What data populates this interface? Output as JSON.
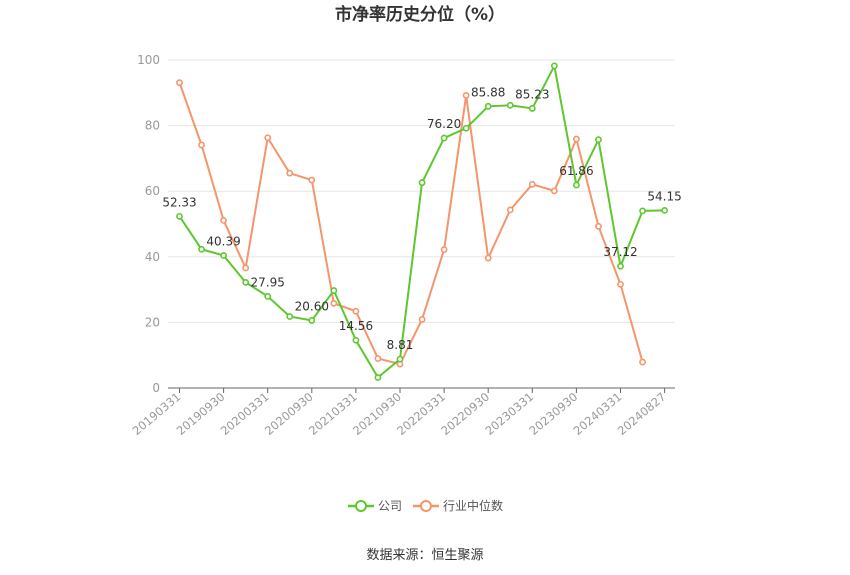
{
  "chart_data": {
    "type": "line",
    "title": "市净率历史分位（%）",
    "xlabel": "",
    "ylabel": "",
    "ylim": [
      0,
      100
    ],
    "yticks": [
      0,
      20,
      40,
      60,
      80,
      100
    ],
    "grid": true,
    "legend": "bottom-center",
    "x_tick_labels": [
      "20190331",
      "20190930",
      "20200331",
      "20200930",
      "20210331",
      "20210930",
      "20220331",
      "20220930",
      "20230331",
      "20230930",
      "20240331",
      "20240827"
    ],
    "series": [
      {
        "name": "公司",
        "color": "#5ec72e",
        "values": [
          52.33,
          42.3,
          40.39,
          32.2,
          27.95,
          21.8,
          20.6,
          29.7,
          14.56,
          3.2,
          8.81,
          62.6,
          76.2,
          79.2,
          85.88,
          86.2,
          85.23,
          98.2,
          61.86,
          75.7,
          37.12,
          54.0,
          54.15
        ],
        "labels": [
          "52.33",
          "",
          "40.39",
          "",
          "27.95",
          "",
          "20.60",
          "",
          "14.56",
          "",
          "8.81",
          "",
          "76.20",
          "",
          "85.88",
          "",
          "85.23",
          "",
          "61.86",
          "",
          "37.12",
          "",
          "54.15"
        ]
      },
      {
        "name": "行业中位数",
        "color": "#f4956b",
        "values": [
          93.1,
          74.1,
          51.1,
          36.6,
          76.3,
          65.5,
          63.4,
          25.8,
          23.4,
          9.0,
          7.3,
          20.9,
          42.2,
          89.2,
          39.6,
          54.3,
          62.1,
          60.1,
          75.9,
          49.3,
          31.6,
          7.9
        ]
      }
    ]
  },
  "source_text": "数据来源：恒生聚源"
}
